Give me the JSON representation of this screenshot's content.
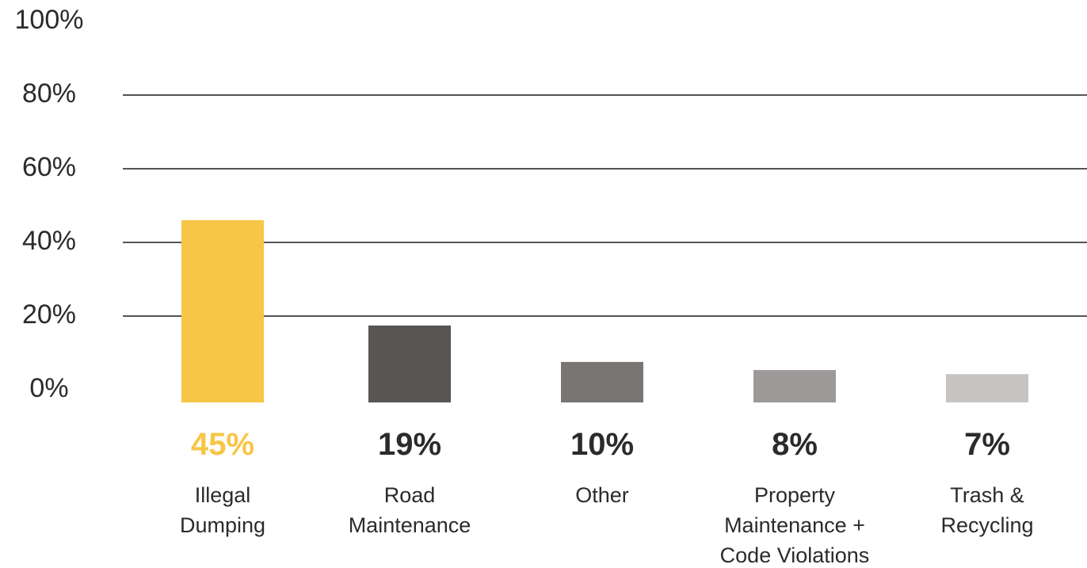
{
  "chart_data": {
    "type": "bar",
    "title": "",
    "xlabel": "",
    "ylabel": "",
    "ylim": [
      0,
      100
    ],
    "yticks": [
      0,
      20,
      40,
      60,
      80,
      100
    ],
    "ytick_labels": [
      "0%",
      "20%",
      "40%",
      "60%",
      "80%",
      "100%"
    ],
    "grid": true,
    "categories": [
      [
        "Illegal",
        "Dumping"
      ],
      [
        "Road",
        "Maintenance"
      ],
      [
        "Other"
      ],
      [
        "Property",
        "Maintenance +",
        "Code Violations"
      ],
      [
        "Trash &",
        "Recycling"
      ]
    ],
    "values": [
      45,
      19,
      10,
      8,
      7
    ],
    "value_labels": [
      "45%",
      "19%",
      "10%",
      "8%",
      "7%"
    ],
    "bar_colors": [
      "#F7C646",
      "#585654",
      "#797574",
      "#9D9998",
      "#C6C5C4"
    ],
    "value_label_colors": [
      "#F7C646",
      "#2b2b2b",
      "#2b2b2b",
      "#2b2b2b",
      "#2b2b2b"
    ]
  }
}
